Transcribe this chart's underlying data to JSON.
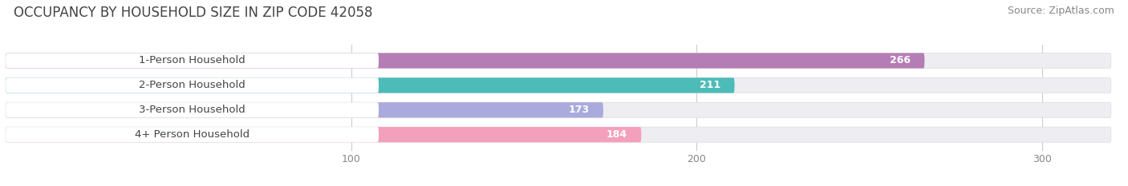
{
  "title": "OCCUPANCY BY HOUSEHOLD SIZE IN ZIP CODE 42058",
  "source": "Source: ZipAtlas.com",
  "categories": [
    "1-Person Household",
    "2-Person Household",
    "3-Person Household",
    "4+ Person Household"
  ],
  "values": [
    266,
    211,
    173,
    184
  ],
  "bar_colors": [
    "#b57db5",
    "#4dbcb8",
    "#aaaadd",
    "#f4a0bc"
  ],
  "bar_bg_color": "#ededf2",
  "label_bg_color": "#ffffff",
  "xlim_data": [
    0,
    320
  ],
  "xticks": [
    100,
    200,
    300
  ],
  "title_fontsize": 12,
  "source_fontsize": 9,
  "label_fontsize": 9.5,
  "value_fontsize": 9,
  "bar_height": 0.62,
  "background_color": "#ffffff",
  "title_color": "#444444",
  "source_color": "#888888",
  "label_color": "#444444",
  "value_color": "#ffffff",
  "tick_color": "#888888",
  "grid_color": "#cccccc"
}
